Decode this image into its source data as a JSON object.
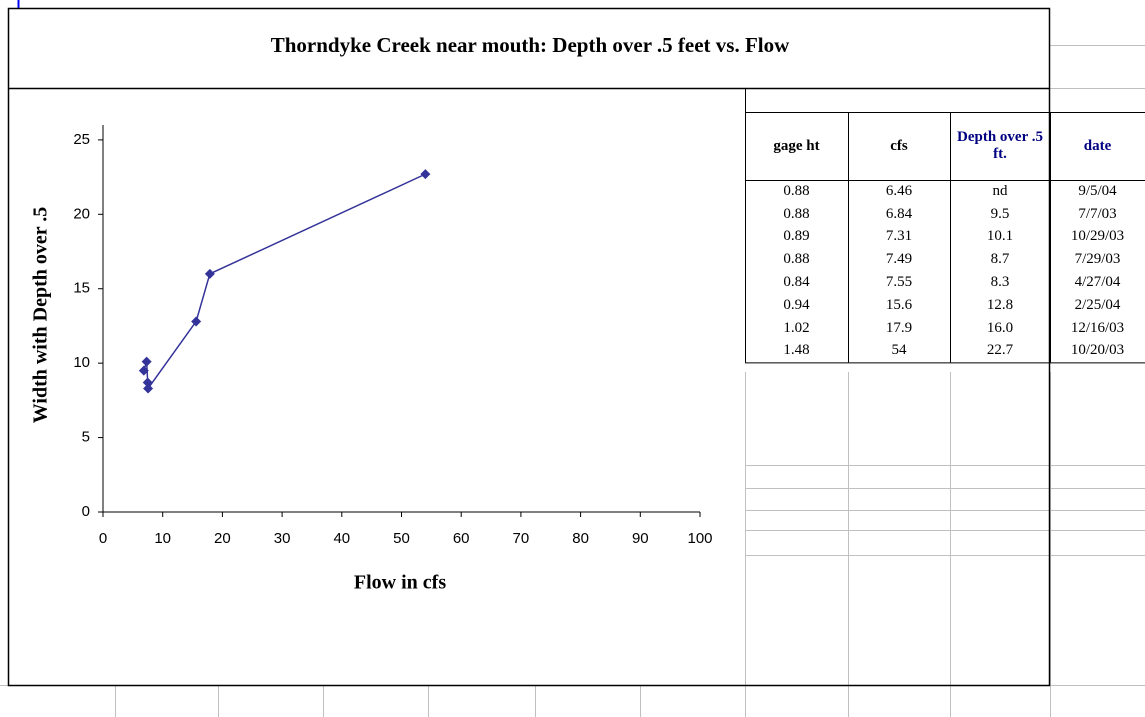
{
  "chart_data": {
    "type": "scatter",
    "title": "Thorndyke Creek near mouth: Depth over .5 feet vs. Flow",
    "x_label": "Flow in cfs",
    "y_label": "Width with Depth over .5",
    "series": [
      {
        "color": "#333399",
        "x": [
          6.84,
          7.31,
          7.49,
          7.55,
          15.6,
          17.9,
          54
        ],
        "values": [
          9.5,
          10.1,
          8.7,
          8.3,
          12.8,
          16.0,
          22.7
        ]
      }
    ],
    "xlim": [
      0,
      100
    ],
    "xticks": [
      0,
      10,
      20,
      30,
      40,
      50,
      60,
      70,
      80,
      90,
      100
    ],
    "ylim": [
      0,
      26
    ],
    "yticks": [
      0,
      5,
      10,
      15,
      20,
      25
    ]
  },
  "table": {
    "header": [
      "gage ht",
      "cfs",
      "Depth over .5 ft.",
      "date"
    ],
    "rows": [
      [
        "0.88",
        "6.46",
        "nd",
        "9/5/04"
      ],
      [
        "0.88",
        "6.84",
        "9.5",
        "7/7/03"
      ],
      [
        "0.89",
        "7.31",
        "10.1",
        "10/29/03"
      ],
      [
        "0.88",
        "7.49",
        "8.7",
        "7/29/03"
      ],
      [
        "0.84",
        "7.55",
        "8.3",
        "4/27/04"
      ],
      [
        "0.94",
        "15.6",
        "12.8",
        "2/25/04"
      ],
      [
        "1.02",
        "17.9",
        "16.0",
        "12/16/03"
      ],
      [
        "1.48",
        "54",
        "22.7",
        "10/20/03"
      ]
    ]
  }
}
